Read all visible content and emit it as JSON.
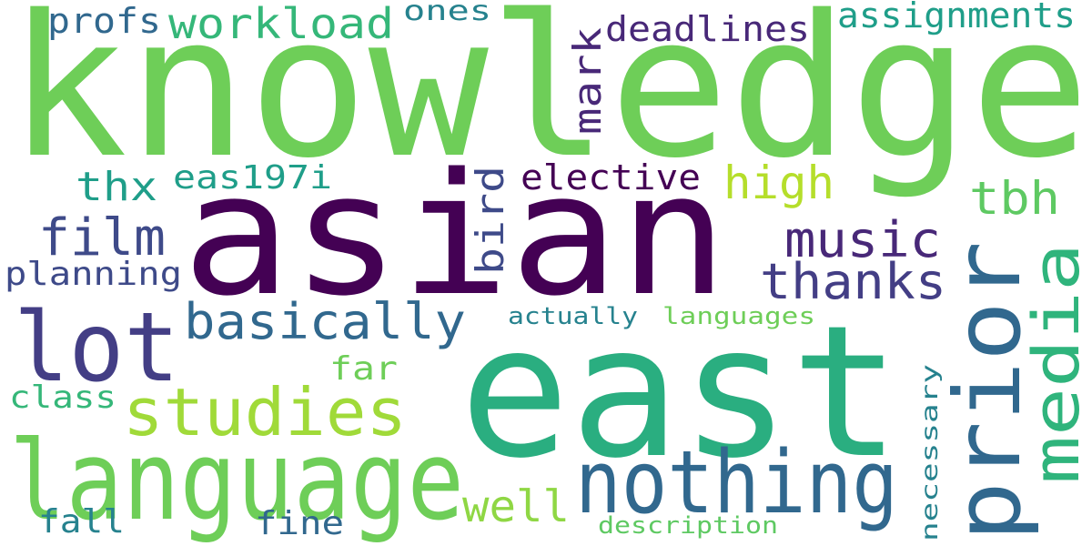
{
  "words": {
    "knowledge": "knowledge",
    "asian": "asian",
    "east": "east",
    "language": "language",
    "nothing": "nothing",
    "prior": "prior",
    "lot": "lot",
    "studies": "studies",
    "media": "media",
    "workload": "workload",
    "profs": "profs",
    "ones": "ones",
    "mark": "mark",
    "deadlines": "deadlines",
    "assignments": "assignments",
    "thx": "thx",
    "eas197i": "eas197i",
    "bird": "bird",
    "elective": "elective",
    "high": "high",
    "tbh": "tbh",
    "film": "film",
    "music": "music",
    "planning": "planning",
    "thanks": "thanks",
    "basically": "basically",
    "actually": "actually",
    "languages": "languages",
    "far": "far",
    "class": "class",
    "necessary": "necessary",
    "well": "well",
    "fall": "fall",
    "fine": "fine",
    "description": "description"
  },
  "colors": {
    "dark_purple": "#440154",
    "purple": "#482878",
    "indigo": "#3e4a89",
    "blue": "#31688e",
    "teal": "#26828e",
    "green_teal": "#1f9e89",
    "green": "#35b779",
    "light_green": "#6ece58",
    "lime": "#b5de2b"
  }
}
